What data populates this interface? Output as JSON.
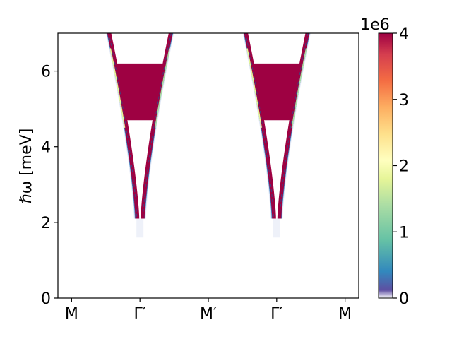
{
  "chart_data": {
    "type": "heatmap",
    "title": "",
    "xlabel": "",
    "ylabel": "ℏω [meV]",
    "ylim": [
      0,
      7
    ],
    "y_ticks": [
      0,
      2,
      4,
      6
    ],
    "x_ticks": [
      "M",
      "Γ′",
      "M′",
      "Γ′",
      "M"
    ],
    "x_tick_positions": [
      0,
      1,
      2,
      3,
      4
    ],
    "xlim": [
      -0.2,
      4.2
    ],
    "grid": false,
    "colorbar": {
      "label": "",
      "offset_text": "1e6",
      "range": [
        0,
        4
      ],
      "ticks": [
        0,
        1,
        2,
        3,
        4
      ],
      "colormap": "Spectral_r"
    },
    "bands": [
      {
        "center": 1,
        "min_energy": 2.1,
        "intense_region": [
          4.7,
          6.2
        ],
        "max_energy": 7
      },
      {
        "center": 3,
        "min_energy": 2.1,
        "intense_region": [
          4.7,
          6.2
        ],
        "max_energy": 7
      }
    ]
  }
}
